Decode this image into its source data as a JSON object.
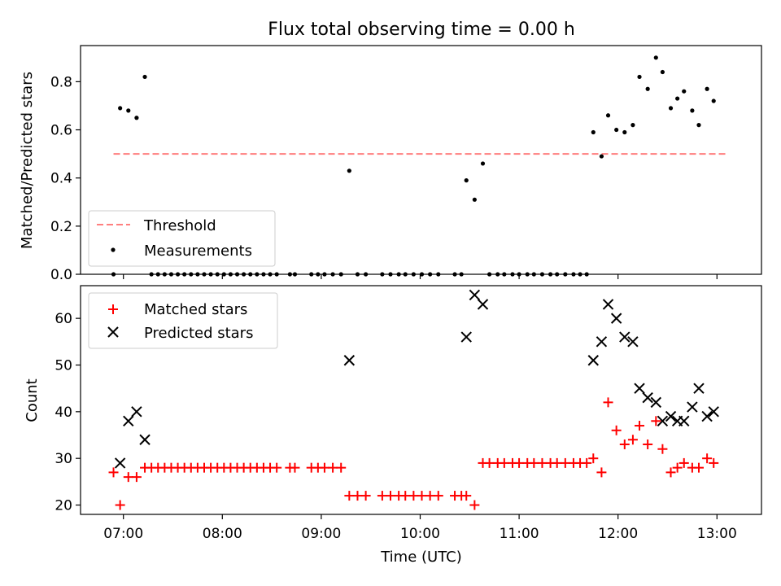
{
  "chart_data": [
    {
      "type": "scatter",
      "title": "Flux total observing time = 0.00 h",
      "xlabel": "",
      "ylabel": "Matched/Predicted stars",
      "xlim": [
        "06:34",
        "13:27"
      ],
      "ylim": [
        0,
        0.95
      ],
      "yticks": [
        "0.0",
        "0.2",
        "0.4",
        "0.6",
        "0.8"
      ],
      "xticks": [
        "07:00",
        "08:00",
        "09:00",
        "10:00",
        "11:00",
        "12:00",
        "13:00"
      ],
      "grid": false,
      "legend_position": "lower-left",
      "threshold": {
        "name": "Threshold",
        "value": 0.5,
        "x_start": "06:54",
        "x_end": "13:06",
        "color": "#ff7f7f"
      },
      "series": [
        {
          "name": "Measurements",
          "color": "#000000",
          "marker": "dot",
          "points": [
            [
              "06:54",
              0.0
            ],
            [
              "06:58",
              0.69
            ],
            [
              "07:03",
              0.68
            ],
            [
              "07:08",
              0.65
            ],
            [
              "07:13",
              0.82
            ],
            [
              "07:17",
              0.0
            ],
            [
              "07:21",
              0.0
            ],
            [
              "07:25",
              0.0
            ],
            [
              "07:29",
              0.0
            ],
            [
              "07:33",
              0.0
            ],
            [
              "07:37",
              0.0
            ],
            [
              "07:41",
              0.0
            ],
            [
              "07:45",
              0.0
            ],
            [
              "07:49",
              0.0
            ],
            [
              "07:53",
              0.0
            ],
            [
              "07:57",
              0.0
            ],
            [
              "08:01",
              0.0
            ],
            [
              "08:05",
              0.0
            ],
            [
              "08:09",
              0.0
            ],
            [
              "08:13",
              0.0
            ],
            [
              "08:17",
              0.0
            ],
            [
              "08:21",
              0.0
            ],
            [
              "08:25",
              0.0
            ],
            [
              "08:29",
              0.0
            ],
            [
              "08:33",
              0.0
            ],
            [
              "08:41",
              0.0
            ],
            [
              "08:44",
              0.0
            ],
            [
              "08:54",
              0.0
            ],
            [
              "08:58",
              0.0
            ],
            [
              "09:02",
              0.0
            ],
            [
              "09:07",
              0.0
            ],
            [
              "09:12",
              0.0
            ],
            [
              "09:17",
              0.43
            ],
            [
              "09:22",
              0.0
            ],
            [
              "09:27",
              0.0
            ],
            [
              "09:37",
              0.0
            ],
            [
              "09:42",
              0.0
            ],
            [
              "09:47",
              0.0
            ],
            [
              "09:51",
              0.0
            ],
            [
              "09:56",
              0.0
            ],
            [
              "10:01",
              0.0
            ],
            [
              "10:06",
              0.0
            ],
            [
              "10:11",
              0.0
            ],
            [
              "10:21",
              0.0
            ],
            [
              "10:25",
              0.0
            ],
            [
              "10:28",
              0.39
            ],
            [
              "10:33",
              0.31
            ],
            [
              "10:38",
              0.46
            ],
            [
              "10:42",
              0.0
            ],
            [
              "10:47",
              0.0
            ],
            [
              "10:51",
              0.0
            ],
            [
              "10:56",
              0.0
            ],
            [
              "11:00",
              0.0
            ],
            [
              "11:05",
              0.0
            ],
            [
              "11:09",
              0.0
            ],
            [
              "11:14",
              0.0
            ],
            [
              "11:19",
              0.0
            ],
            [
              "11:23",
              0.0
            ],
            [
              "11:28",
              0.0
            ],
            [
              "11:33",
              0.0
            ],
            [
              "11:37",
              0.0
            ],
            [
              "11:41",
              0.0
            ],
            [
              "11:45",
              0.59
            ],
            [
              "11:50",
              0.49
            ],
            [
              "11:54",
              0.66
            ],
            [
              "11:59",
              0.6
            ],
            [
              "12:04",
              0.59
            ],
            [
              "12:09",
              0.62
            ],
            [
              "12:13",
              0.82
            ],
            [
              "12:18",
              0.77
            ],
            [
              "12:23",
              0.9
            ],
            [
              "12:27",
              0.84
            ],
            [
              "12:32",
              0.69
            ],
            [
              "12:36",
              0.73
            ],
            [
              "12:40",
              0.76
            ],
            [
              "12:45",
              0.68
            ],
            [
              "12:49",
              0.62
            ],
            [
              "12:54",
              0.77
            ],
            [
              "12:58",
              0.72
            ]
          ]
        }
      ]
    },
    {
      "type": "scatter",
      "title": "",
      "xlabel": "Time (UTC)",
      "ylabel": "Count",
      "xlim": [
        "06:34",
        "13:27"
      ],
      "ylim": [
        18,
        67
      ],
      "yticks": [
        "20",
        "30",
        "40",
        "50",
        "60"
      ],
      "xticks": [
        "07:00",
        "08:00",
        "09:00",
        "10:00",
        "11:00",
        "12:00",
        "13:00"
      ],
      "grid": false,
      "legend_position": "upper-left",
      "series": [
        {
          "name": "Matched stars",
          "color": "#ff0000",
          "marker": "plus",
          "points": [
            [
              "06:54",
              27
            ],
            [
              "06:58",
              20
            ],
            [
              "07:03",
              26
            ],
            [
              "07:08",
              26
            ],
            [
              "07:13",
              28
            ],
            [
              "07:17",
              28
            ],
            [
              "07:21",
              28
            ],
            [
              "07:25",
              28
            ],
            [
              "07:29",
              28
            ],
            [
              "07:33",
              28
            ],
            [
              "07:37",
              28
            ],
            [
              "07:41",
              28
            ],
            [
              "07:45",
              28
            ],
            [
              "07:49",
              28
            ],
            [
              "07:53",
              28
            ],
            [
              "07:57",
              28
            ],
            [
              "08:01",
              28
            ],
            [
              "08:05",
              28
            ],
            [
              "08:09",
              28
            ],
            [
              "08:13",
              28
            ],
            [
              "08:17",
              28
            ],
            [
              "08:21",
              28
            ],
            [
              "08:25",
              28
            ],
            [
              "08:29",
              28
            ],
            [
              "08:33",
              28
            ],
            [
              "08:41",
              28
            ],
            [
              "08:44",
              28
            ],
            [
              "08:54",
              28
            ],
            [
              "08:58",
              28
            ],
            [
              "09:02",
              28
            ],
            [
              "09:07",
              28
            ],
            [
              "09:12",
              28
            ],
            [
              "09:17",
              22
            ],
            [
              "09:22",
              22
            ],
            [
              "09:27",
              22
            ],
            [
              "09:37",
              22
            ],
            [
              "09:42",
              22
            ],
            [
              "09:47",
              22
            ],
            [
              "09:51",
              22
            ],
            [
              "09:56",
              22
            ],
            [
              "10:01",
              22
            ],
            [
              "10:06",
              22
            ],
            [
              "10:11",
              22
            ],
            [
              "10:21",
              22
            ],
            [
              "10:25",
              22
            ],
            [
              "10:28",
              22
            ],
            [
              "10:33",
              20
            ],
            [
              "10:38",
              29
            ],
            [
              "10:42",
              29
            ],
            [
              "10:47",
              29
            ],
            [
              "10:51",
              29
            ],
            [
              "10:56",
              29
            ],
            [
              "11:00",
              29
            ],
            [
              "11:05",
              29
            ],
            [
              "11:09",
              29
            ],
            [
              "11:14",
              29
            ],
            [
              "11:19",
              29
            ],
            [
              "11:23",
              29
            ],
            [
              "11:28",
              29
            ],
            [
              "11:33",
              29
            ],
            [
              "11:37",
              29
            ],
            [
              "11:41",
              29
            ],
            [
              "11:45",
              30
            ],
            [
              "11:50",
              27
            ],
            [
              "11:54",
              42
            ],
            [
              "11:59",
              36
            ],
            [
              "12:04",
              33
            ],
            [
              "12:09",
              34
            ],
            [
              "12:13",
              37
            ],
            [
              "12:18",
              33
            ],
            [
              "12:23",
              38
            ],
            [
              "12:27",
              32
            ],
            [
              "12:32",
              27
            ],
            [
              "12:36",
              28
            ],
            [
              "12:40",
              29
            ],
            [
              "12:45",
              28
            ],
            [
              "12:49",
              28
            ],
            [
              "12:54",
              30
            ],
            [
              "12:58",
              29
            ]
          ]
        },
        {
          "name": "Predicted stars",
          "color": "#000000",
          "marker": "x",
          "points": [
            [
              "06:58",
              29
            ],
            [
              "07:03",
              38
            ],
            [
              "07:08",
              40
            ],
            [
              "07:13",
              34
            ],
            [
              "09:17",
              51
            ],
            [
              "10:28",
              56
            ],
            [
              "10:33",
              65
            ],
            [
              "10:38",
              63
            ],
            [
              "11:45",
              51
            ],
            [
              "11:50",
              55
            ],
            [
              "11:54",
              63
            ],
            [
              "11:59",
              60
            ],
            [
              "12:04",
              56
            ],
            [
              "12:09",
              55
            ],
            [
              "12:13",
              45
            ],
            [
              "12:18",
              43
            ],
            [
              "12:23",
              42
            ],
            [
              "12:27",
              38
            ],
            [
              "12:32",
              39
            ],
            [
              "12:36",
              38
            ],
            [
              "12:40",
              38
            ],
            [
              "12:45",
              41
            ],
            [
              "12:49",
              45
            ],
            [
              "12:54",
              39
            ],
            [
              "12:58",
              40
            ]
          ]
        }
      ]
    }
  ]
}
